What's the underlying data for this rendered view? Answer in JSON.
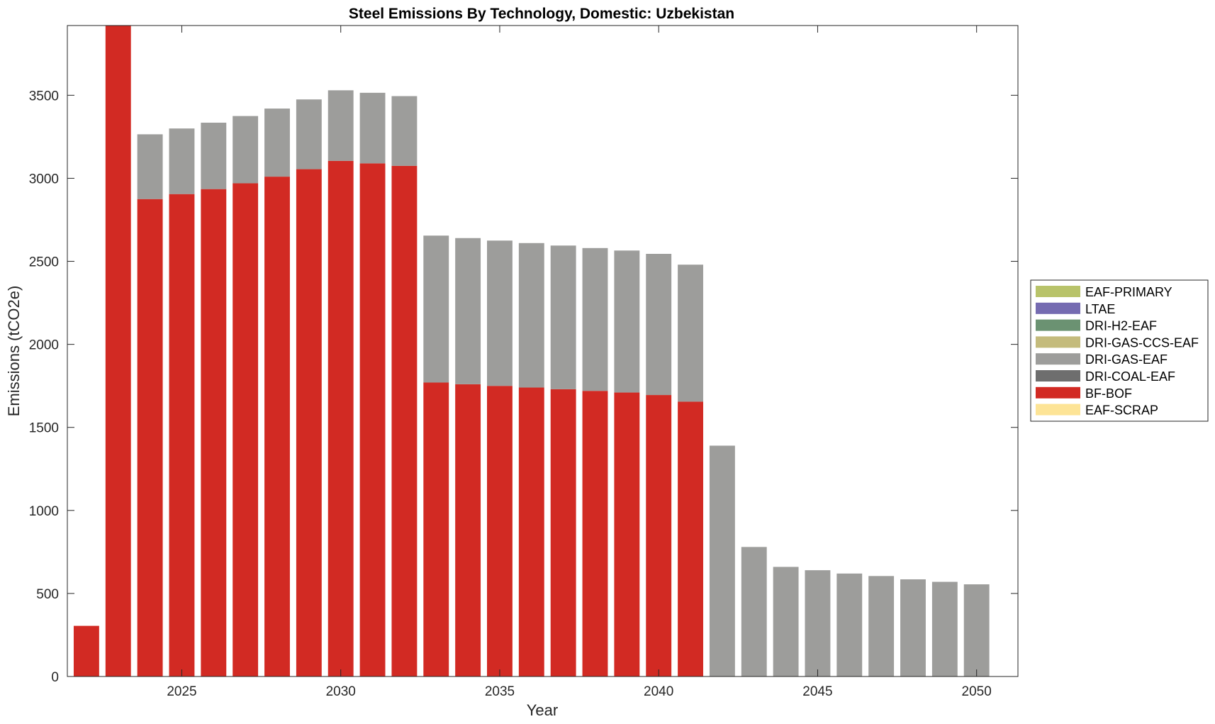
{
  "chart_data": {
    "type": "bar",
    "stacked": true,
    "title": "Steel Emissions By Technology, Domestic: Uzbekistan",
    "xlabel": "Year",
    "ylabel": "Emissions (tCO2e)",
    "xlim": [
      2021.4,
      2051.3
    ],
    "ylim": [
      0,
      3920
    ],
    "x_ticks": [
      2025,
      2030,
      2035,
      2040,
      2045,
      2050
    ],
    "y_ticks": [
      0,
      500,
      1000,
      1500,
      2000,
      2500,
      3000,
      3500
    ],
    "grid": false,
    "legend_position": "right",
    "x": [
      2022,
      2023,
      2024,
      2025,
      2026,
      2027,
      2028,
      2029,
      2030,
      2031,
      2032,
      2033,
      2034,
      2035,
      2036,
      2037,
      2038,
      2039,
      2040,
      2041,
      2042,
      2043,
      2044,
      2045,
      2046,
      2047,
      2048,
      2049,
      2050
    ],
    "series": [
      {
        "name": "EAF-PRIMARY",
        "color": "#b8c36a",
        "values": [
          0,
          0,
          0,
          0,
          0,
          0,
          0,
          0,
          0,
          0,
          0,
          0,
          0,
          0,
          0,
          0,
          0,
          0,
          0,
          0,
          0,
          0,
          0,
          0,
          0,
          0,
          0,
          0,
          0
        ]
      },
      {
        "name": "LTAE",
        "color": "#756bb1",
        "values": [
          0,
          0,
          0,
          0,
          0,
          0,
          0,
          0,
          0,
          0,
          0,
          0,
          0,
          0,
          0,
          0,
          0,
          0,
          0,
          0,
          0,
          0,
          0,
          0,
          0,
          0,
          0,
          0,
          0
        ]
      },
      {
        "name": "DRI-H2-EAF",
        "color": "#6b9272",
        "values": [
          0,
          0,
          0,
          0,
          0,
          0,
          0,
          0,
          0,
          0,
          0,
          0,
          0,
          0,
          0,
          0,
          0,
          0,
          0,
          0,
          0,
          0,
          0,
          0,
          0,
          0,
          0,
          0,
          0
        ]
      },
      {
        "name": "DRI-GAS-CCS-EAF",
        "color": "#c4bb7c",
        "values": [
          0,
          0,
          0,
          0,
          0,
          0,
          0,
          0,
          0,
          0,
          0,
          0,
          0,
          0,
          0,
          0,
          0,
          0,
          0,
          0,
          0,
          0,
          0,
          0,
          0,
          0,
          0,
          0,
          0
        ]
      },
      {
        "name": "DRI-GAS-EAF",
        "color": "#9d9d9b",
        "values": [
          0,
          0,
          390,
          395,
          400,
          405,
          410,
          420,
          425,
          425,
          420,
          885,
          880,
          875,
          870,
          865,
          860,
          855,
          850,
          825,
          1390,
          780,
          660,
          640,
          620,
          605,
          585,
          570,
          555
        ]
      },
      {
        "name": "DRI-COAL-EAF",
        "color": "#6e6e6e",
        "values": [
          0,
          0,
          0,
          0,
          0,
          0,
          0,
          0,
          0,
          0,
          0,
          0,
          0,
          0,
          0,
          0,
          0,
          0,
          0,
          0,
          0,
          0,
          0,
          0,
          0,
          0,
          0,
          0,
          0
        ]
      },
      {
        "name": "BF-BOF",
        "color": "#d22a23",
        "values": [
          305,
          3920,
          2875,
          2905,
          2935,
          2970,
          3010,
          3055,
          3105,
          3090,
          3075,
          1770,
          1760,
          1750,
          1740,
          1730,
          1720,
          1710,
          1695,
          1655,
          0,
          0,
          0,
          0,
          0,
          0,
          0,
          0,
          0
        ]
      },
      {
        "name": "EAF-SCRAP",
        "color": "#fde496",
        "values": [
          0,
          0,
          0,
          0,
          0,
          0,
          0,
          0,
          0,
          0,
          0,
          0,
          0,
          0,
          0,
          0,
          0,
          0,
          0,
          0,
          0,
          0,
          0,
          0,
          0,
          0,
          0,
          0,
          0
        ]
      }
    ],
    "stack_order": [
      "BF-BOF",
      "DRI-GAS-EAF",
      "EAF-SCRAP",
      "DRI-COAL-EAF",
      "DRI-GAS-CCS-EAF",
      "DRI-H2-EAF",
      "LTAE",
      "EAF-PRIMARY"
    ]
  }
}
